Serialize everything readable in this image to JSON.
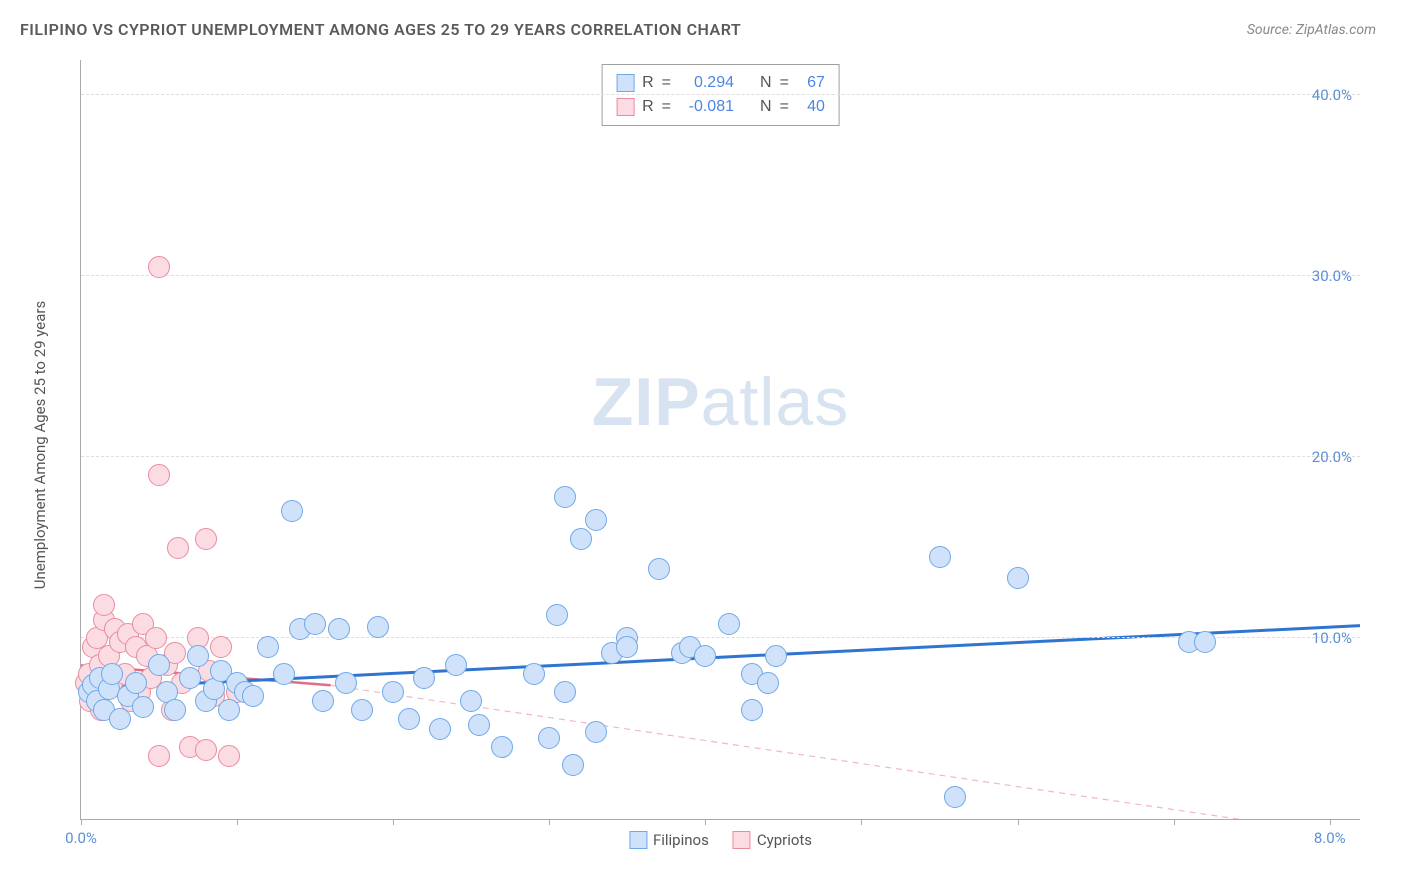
{
  "header": {
    "title": "FILIPINO VS CYPRIOT UNEMPLOYMENT AMONG AGES 25 TO 29 YEARS CORRELATION CHART",
    "source": "Source: ZipAtlas.com"
  },
  "watermark": {
    "zip": "ZIP",
    "atlas": "atlas"
  },
  "chart": {
    "type": "scatter",
    "y_axis_label": "Unemployment Among Ages 25 to 29 years",
    "xlim": [
      0,
      8.2
    ],
    "ylim": [
      0,
      42
    ],
    "x_ticks": [
      0,
      1,
      2,
      3,
      4,
      5,
      6,
      7,
      8
    ],
    "x_tick_labels_shown": {
      "0": "0.0%",
      "8": "8.0%"
    },
    "y_gridlines": [
      10,
      20,
      30,
      40
    ],
    "y_tick_labels": {
      "10": "10.0%",
      "20": "20.0%",
      "30": "30.0%",
      "40": "40.0%"
    },
    "background_color": "#ffffff",
    "grid_color": "#dddddd",
    "axis_color": "#aaaaaa",
    "tick_label_color": "#5b8fd6",
    "axis_label_color": "#555555",
    "marker_radius": 11,
    "marker_stroke_width": 1.5,
    "series": [
      {
        "name": "Filipinos",
        "fill": "#cfe2f9",
        "stroke": "#6fa8e8",
        "R": "0.294",
        "N": "67",
        "trend": {
          "x1": 0,
          "y1": 7.2,
          "x2": 8.2,
          "y2": 10.7,
          "color": "#2f74d0",
          "width": 3,
          "dash": "none"
        },
        "points": [
          [
            0.05,
            7.0
          ],
          [
            0.08,
            7.4
          ],
          [
            0.1,
            6.5
          ],
          [
            0.12,
            7.8
          ],
          [
            0.15,
            6.0
          ],
          [
            0.18,
            7.2
          ],
          [
            0.2,
            8.0
          ],
          [
            0.25,
            5.5
          ],
          [
            0.3,
            6.8
          ],
          [
            0.35,
            7.5
          ],
          [
            0.4,
            6.2
          ],
          [
            0.5,
            8.5
          ],
          [
            0.55,
            7.0
          ],
          [
            0.6,
            6.0
          ],
          [
            0.7,
            7.8
          ],
          [
            0.75,
            9.0
          ],
          [
            0.8,
            6.5
          ],
          [
            0.85,
            7.2
          ],
          [
            0.9,
            8.2
          ],
          [
            0.95,
            6.0
          ],
          [
            1.0,
            7.5
          ],
          [
            1.05,
            7.0
          ],
          [
            1.1,
            6.8
          ],
          [
            1.2,
            9.5
          ],
          [
            1.3,
            8.0
          ],
          [
            1.35,
            17.0
          ],
          [
            1.4,
            10.5
          ],
          [
            1.5,
            10.8
          ],
          [
            1.55,
            6.5
          ],
          [
            1.65,
            10.5
          ],
          [
            1.7,
            7.5
          ],
          [
            1.8,
            6.0
          ],
          [
            1.9,
            10.6
          ],
          [
            2.0,
            7.0
          ],
          [
            2.1,
            5.5
          ],
          [
            2.2,
            7.8
          ],
          [
            2.3,
            5.0
          ],
          [
            2.4,
            8.5
          ],
          [
            2.5,
            6.5
          ],
          [
            2.55,
            5.2
          ],
          [
            2.7,
            4.0
          ],
          [
            2.9,
            8.0
          ],
          [
            3.0,
            4.5
          ],
          [
            3.05,
            11.3
          ],
          [
            3.1,
            7.0
          ],
          [
            3.1,
            17.8
          ],
          [
            3.15,
            3.0
          ],
          [
            3.2,
            15.5
          ],
          [
            3.3,
            4.8
          ],
          [
            3.3,
            16.5
          ],
          [
            3.4,
            9.2
          ],
          [
            3.5,
            10.0
          ],
          [
            3.5,
            9.5
          ],
          [
            3.7,
            13.8
          ],
          [
            3.85,
            9.2
          ],
          [
            3.9,
            9.5
          ],
          [
            4.0,
            9.0
          ],
          [
            4.15,
            10.8
          ],
          [
            4.3,
            6.0
          ],
          [
            4.3,
            8.0
          ],
          [
            4.4,
            7.5
          ],
          [
            4.45,
            9.0
          ],
          [
            5.5,
            14.5
          ],
          [
            5.6,
            1.2
          ],
          [
            6.0,
            13.3
          ],
          [
            7.1,
            9.8
          ],
          [
            7.2,
            9.8
          ]
        ]
      },
      {
        "name": "Cypriots",
        "fill": "#fadce2",
        "stroke": "#e98ca0",
        "R": "-0.081",
        "N": "40",
        "trend_solid": {
          "x1": 0,
          "y1": 8.5,
          "x2": 1.6,
          "y2": 7.4,
          "color": "#e26d84",
          "width": 2.5
        },
        "trend_dashed": {
          "x1": 1.6,
          "y1": 7.4,
          "x2": 8.2,
          "y2": -1.0,
          "color": "#f0b8c3",
          "width": 1.2,
          "dash": "6,5"
        },
        "points": [
          [
            0.03,
            7.5
          ],
          [
            0.05,
            8.0
          ],
          [
            0.06,
            6.5
          ],
          [
            0.08,
            9.5
          ],
          [
            0.09,
            7.0
          ],
          [
            0.1,
            10.0
          ],
          [
            0.12,
            8.5
          ],
          [
            0.13,
            6.0
          ],
          [
            0.15,
            11.0
          ],
          [
            0.15,
            11.8
          ],
          [
            0.18,
            9.0
          ],
          [
            0.2,
            7.5
          ],
          [
            0.22,
            10.5
          ],
          [
            0.25,
            9.8
          ],
          [
            0.28,
            8.0
          ],
          [
            0.3,
            10.2
          ],
          [
            0.32,
            6.5
          ],
          [
            0.35,
            9.5
          ],
          [
            0.38,
            7.0
          ],
          [
            0.4,
            10.8
          ],
          [
            0.42,
            9.0
          ],
          [
            0.45,
            7.8
          ],
          [
            0.48,
            10.0
          ],
          [
            0.5,
            3.5
          ],
          [
            0.5,
            19.0
          ],
          [
            0.5,
            30.5
          ],
          [
            0.55,
            8.5
          ],
          [
            0.58,
            6.0
          ],
          [
            0.6,
            9.2
          ],
          [
            0.62,
            15.0
          ],
          [
            0.65,
            7.5
          ],
          [
            0.7,
            4.0
          ],
          [
            0.75,
            10.0
          ],
          [
            0.8,
            3.8
          ],
          [
            0.8,
            15.5
          ],
          [
            0.82,
            8.2
          ],
          [
            0.85,
            6.8
          ],
          [
            0.9,
            9.5
          ],
          [
            0.95,
            3.5
          ],
          [
            1.0,
            7.0
          ]
        ]
      }
    ],
    "stats_box": {
      "label_R": "R",
      "label_N": "N",
      "equals": "="
    },
    "legend": {
      "series1": "Filipinos",
      "series2": "Cypriots"
    }
  }
}
